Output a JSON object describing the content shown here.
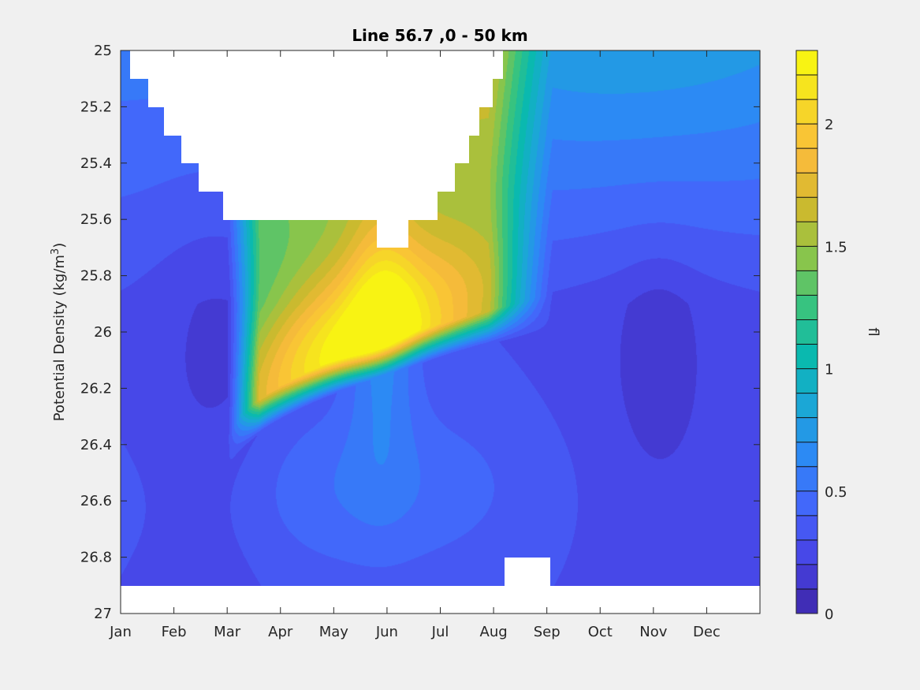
{
  "chart_data": {
    "type": "heatmap",
    "title": "Line 56.7 ,0 - 50 km",
    "ylabel_main": "Potential Density (kg/m",
    "ylabel_sup": "3",
    "ylabel_close": ")",
    "colorbar_label": "fl",
    "x_ticks": [
      "Jan",
      "Feb",
      "Mar",
      "Apr",
      "May",
      "Jun",
      "Jul",
      "Aug",
      "Sep",
      "Oct",
      "Nov",
      "Dec"
    ],
    "y_ticks": [
      "25",
      "25.2",
      "25.4",
      "25.6",
      "25.8",
      "26",
      "26.2",
      "26.4",
      "26.6",
      "26.8",
      "27"
    ],
    "y_tick_values": [
      25,
      25.2,
      25.4,
      25.6,
      25.8,
      26,
      26.2,
      26.4,
      26.6,
      26.8,
      27
    ],
    "ylim": [
      25,
      27
    ],
    "y_reversed": true,
    "xlim_months": [
      0,
      12
    ],
    "colorbar_ticks": [
      "0",
      "0.5",
      "1",
      "1.5",
      "2"
    ],
    "colorbar_tick_values": [
      0,
      0.5,
      1,
      1.5,
      2
    ],
    "colorbar_range": [
      0,
      2.3
    ],
    "colorbar_levels": 23,
    "colormap": "parula",
    "colormap_stops": [
      "#3e26a8",
      "#4742e3",
      "#4662fb",
      "#2e87f7",
      "#1ca6d9",
      "#09b9b0",
      "#38c37f",
      "#8ec548",
      "#d1b92c",
      "#fbbb3d",
      "#f5db24",
      "#f9fb0e"
    ],
    "masked_color": "#ffffff",
    "field_features": {
      "background_deep_min_value": 0.12,
      "main_band_peak_value": 2.1,
      "main_band_peak_month": 4.5,
      "main_band_peak_density": 26.1,
      "surface_upper_right_value": 0.75
    }
  }
}
